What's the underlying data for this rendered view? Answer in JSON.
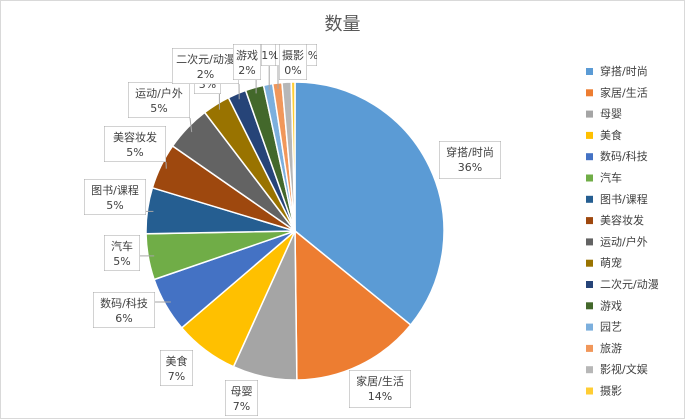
{
  "chart_data": {
    "type": "pie",
    "title": "数量",
    "legend_position": "right",
    "slices": [
      {
        "label": "穿搭/时尚",
        "value": 36,
        "value_label": "36%",
        "color": "#5b9bd5"
      },
      {
        "label": "家居/生活",
        "value": 14,
        "value_label": "14%",
        "color": "#ed7d31"
      },
      {
        "label": "母婴",
        "value": 7,
        "value_label": "7%",
        "color": "#a5a5a5"
      },
      {
        "label": "美食",
        "value": 7,
        "value_label": "7%",
        "color": "#ffc000"
      },
      {
        "label": "数码/科技",
        "value": 6,
        "value_label": "6%",
        "color": "#4472c4"
      },
      {
        "label": "汽车",
        "value": 5,
        "value_label": "5%",
        "color": "#70ad47"
      },
      {
        "label": "图书/课程",
        "value": 5,
        "value_label": "5%",
        "color": "#255e91"
      },
      {
        "label": "美容妆发",
        "value": 5,
        "value_label": "5%",
        "color": "#9e480e"
      },
      {
        "label": "运动/户外",
        "value": 5,
        "value_label": "5%",
        "color": "#636363"
      },
      {
        "label": "萌宠",
        "value": 3,
        "value_label": "3%",
        "color": "#997300"
      },
      {
        "label": "二次元/动漫",
        "value": 2,
        "value_label": "2%",
        "color": "#264478"
      },
      {
        "label": "游戏",
        "value": 2,
        "value_label": "2%",
        "color": "#43682b"
      },
      {
        "label": "园艺",
        "value": 1,
        "value_label": "1%",
        "color": "#7cafdd"
      },
      {
        "label": "旅游",
        "value": 1,
        "value_label": "1%",
        "color": "#f1975a"
      },
      {
        "label": "影视/文娱",
        "value": 1,
        "value_label": "1%",
        "color": "#b7b7b7"
      },
      {
        "label": "摄影",
        "value": 0.4,
        "value_label": "0%",
        "color": "#ffcd33"
      }
    ]
  }
}
